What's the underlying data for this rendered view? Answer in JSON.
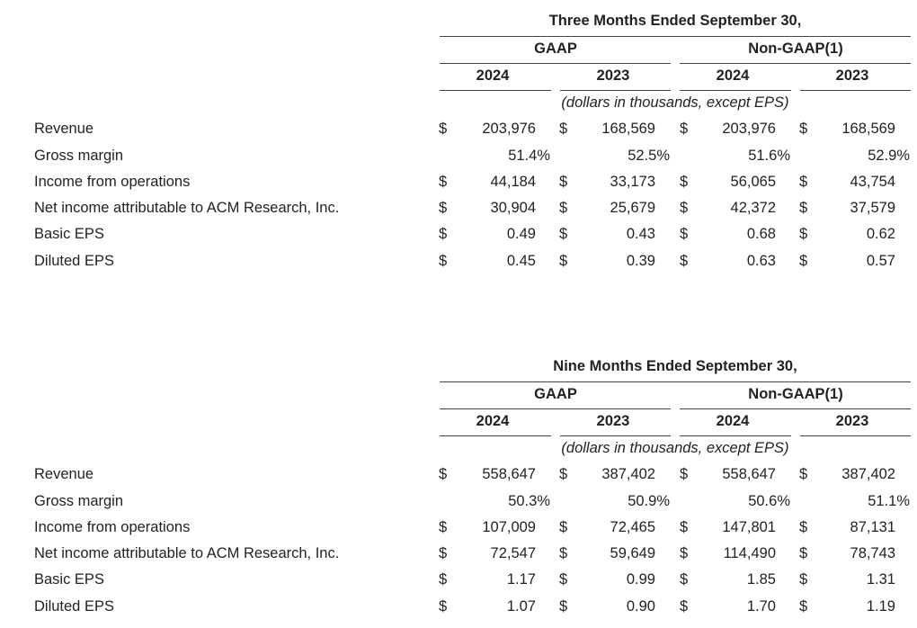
{
  "tables": [
    {
      "title": "Three Months Ended September 30,",
      "groups": [
        "GAAP",
        "Non-GAAP(1)"
      ],
      "years": [
        "2024",
        "2023",
        "2024",
        "2023"
      ],
      "unit_note": "(dollars in thousands, except EPS)",
      "rows": [
        {
          "label": "Revenue",
          "cells": [
            {
              "cur": "$",
              "val": "203,976"
            },
            {
              "cur": "$",
              "val": "168,569"
            },
            {
              "cur": "$",
              "val": "203,976"
            },
            {
              "cur": "$",
              "val": "168,569"
            }
          ]
        },
        {
          "label": "Gross margin",
          "cells": [
            {
              "cur": "",
              "val": "51.4%"
            },
            {
              "cur": "",
              "val": "52.5%"
            },
            {
              "cur": "",
              "val": "51.6%"
            },
            {
              "cur": "",
              "val": "52.9%"
            }
          ]
        },
        {
          "label": "Income from operations",
          "cells": [
            {
              "cur": "$",
              "val": "44,184"
            },
            {
              "cur": "$",
              "val": "33,173"
            },
            {
              "cur": "$",
              "val": "56,065"
            },
            {
              "cur": "$",
              "val": "43,754"
            }
          ]
        },
        {
          "label": "Net income attributable to ACM Research, Inc.",
          "cells": [
            {
              "cur": "$",
              "val": "30,904"
            },
            {
              "cur": "$",
              "val": "25,679"
            },
            {
              "cur": "$",
              "val": "42,372"
            },
            {
              "cur": "$",
              "val": "37,579"
            }
          ]
        },
        {
          "label": "Basic EPS",
          "cells": [
            {
              "cur": "$",
              "val": "0.49"
            },
            {
              "cur": "$",
              "val": "0.43"
            },
            {
              "cur": "$",
              "val": "0.68"
            },
            {
              "cur": "$",
              "val": "0.62"
            }
          ]
        },
        {
          "label": "Diluted EPS",
          "cells": [
            {
              "cur": "$",
              "val": "0.45"
            },
            {
              "cur": "$",
              "val": "0.39"
            },
            {
              "cur": "$",
              "val": "0.63"
            },
            {
              "cur": "$",
              "val": "0.57"
            }
          ]
        }
      ]
    },
    {
      "title": "Nine Months Ended September 30,",
      "groups": [
        "GAAP",
        "Non-GAAP(1)"
      ],
      "years": [
        "2024",
        "2023",
        "2024",
        "2023"
      ],
      "unit_note": "(dollars in thousands, except EPS)",
      "rows": [
        {
          "label": "Revenue",
          "cells": [
            {
              "cur": "$",
              "val": "558,647"
            },
            {
              "cur": "$",
              "val": "387,402"
            },
            {
              "cur": "$",
              "val": "558,647"
            },
            {
              "cur": "$",
              "val": "387,402"
            }
          ]
        },
        {
          "label": "Gross margin",
          "cells": [
            {
              "cur": "",
              "val": "50.3%"
            },
            {
              "cur": "",
              "val": "50.9%"
            },
            {
              "cur": "",
              "val": "50.6%"
            },
            {
              "cur": "",
              "val": "51.1%"
            }
          ]
        },
        {
          "label": "Income from operations",
          "cells": [
            {
              "cur": "$",
              "val": "107,009"
            },
            {
              "cur": "$",
              "val": "72,465"
            },
            {
              "cur": "$",
              "val": "147,801"
            },
            {
              "cur": "$",
              "val": "87,131"
            }
          ]
        },
        {
          "label": "Net income attributable to ACM Research, Inc.",
          "cells": [
            {
              "cur": "$",
              "val": "72,547"
            },
            {
              "cur": "$",
              "val": "59,649"
            },
            {
              "cur": "$",
              "val": "114,490"
            },
            {
              "cur": "$",
              "val": "78,743"
            }
          ]
        },
        {
          "label": "Basic EPS",
          "cells": [
            {
              "cur": "$",
              "val": "1.17"
            },
            {
              "cur": "$",
              "val": "0.99"
            },
            {
              "cur": "$",
              "val": "1.85"
            },
            {
              "cur": "$",
              "val": "1.31"
            }
          ]
        },
        {
          "label": "Diluted EPS",
          "cells": [
            {
              "cur": "$",
              "val": "1.07"
            },
            {
              "cur": "$",
              "val": "0.90"
            },
            {
              "cur": "$",
              "val": "1.70"
            },
            {
              "cur": "$",
              "val": "1.19"
            }
          ]
        }
      ]
    }
  ]
}
